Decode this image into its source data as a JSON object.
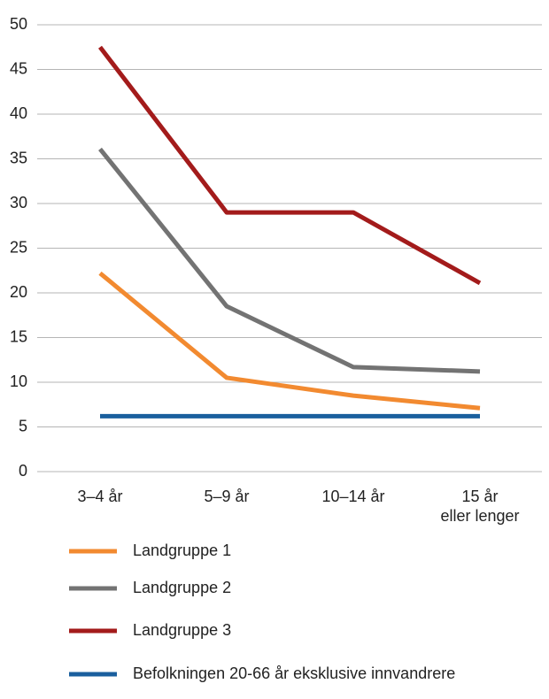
{
  "chart_data": {
    "type": "line",
    "categories": [
      "3–4 år",
      "5–9 år",
      "10–14 år",
      "15 år\neller lenger"
    ],
    "series": [
      {
        "name": "Landgruppe 1",
        "color": "#f28a30",
        "values": [
          22.2,
          10.5,
          8.5,
          7.1
        ]
      },
      {
        "name": "Landgruppe 2",
        "color": "#737373",
        "values": [
          36.1,
          18.5,
          11.7,
          11.2
        ]
      },
      {
        "name": "Landgruppe 3",
        "color": "#a31b1b",
        "values": [
          47.5,
          29,
          29,
          21.1
        ]
      },
      {
        "name": "Befolkningen 20-66 år eksklusive innvandrere",
        "color": "#1a5f9e",
        "values": [
          6.2,
          6.2,
          6.2,
          6.2
        ]
      }
    ],
    "ylim": [
      0,
      50
    ],
    "yticks": [
      0,
      5,
      10,
      15,
      20,
      25,
      30,
      35,
      40,
      45,
      50
    ],
    "grid": true,
    "legend": "bottom"
  }
}
